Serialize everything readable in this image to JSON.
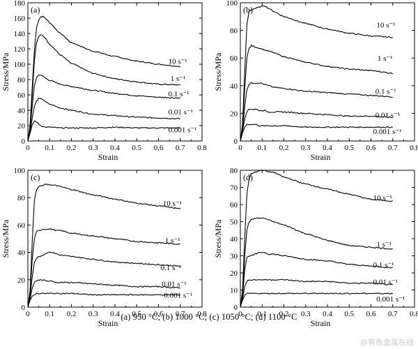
{
  "caption": "(a) 950 °C; (b) 1000 °C; (c) 1050 °C; (d) 1100 °C",
  "watermark": "@有色金属在线",
  "colors": {
    "line": "#000000",
    "background": "#ffffff",
    "watermark": "#c8c8c8"
  },
  "chart_data": [
    {
      "type": "line",
      "panel": "(a)",
      "xlabel": "Strain",
      "ylabel": "Stress/MPa",
      "xlim": [
        0,
        0.8
      ],
      "ylim": [
        0,
        180
      ],
      "xticks": [
        0,
        0.1,
        0.2,
        0.3,
        0.4,
        0.5,
        0.6,
        0.7,
        0.8
      ],
      "xtick_labels": [
        "0",
        "0.1",
        "0.2",
        "0.3",
        "0.4",
        "0.5",
        "0.6",
        "0.7",
        "0.8"
      ],
      "yticks": [
        0,
        20,
        40,
        60,
        80,
        100,
        120,
        140,
        160,
        180
      ],
      "ytick_labels": [
        "0",
        "20",
        "40",
        "60",
        "80",
        "100",
        "120",
        "140",
        "160",
        "180"
      ],
      "grid": false,
      "legend": "inline labels at right end of curves",
      "series": [
        {
          "name": "10 s⁻¹",
          "label_pos": [
            0.645,
            104
          ],
          "x": [
            0.01,
            0.02,
            0.03,
            0.04,
            0.05,
            0.06,
            0.07,
            0.08,
            0.1,
            0.15,
            0.2,
            0.3,
            0.4,
            0.5,
            0.6,
            0.7
          ],
          "y": [
            20,
            70,
            118,
            148,
            158,
            162,
            162,
            160,
            154,
            140,
            128,
            117,
            110,
            104,
            100,
            97
          ]
        },
        {
          "name": "1 s⁻¹",
          "label_pos": [
            0.655,
            82
          ],
          "x": [
            0.01,
            0.02,
            0.03,
            0.04,
            0.05,
            0.06,
            0.07,
            0.08,
            0.1,
            0.15,
            0.2,
            0.3,
            0.4,
            0.5,
            0.6,
            0.7
          ],
          "y": [
            18,
            60,
            105,
            128,
            136,
            138,
            137,
            134,
            126,
            112,
            101,
            88,
            81,
            77,
            74,
            73
          ]
        },
        {
          "name": "0.1 s⁻¹",
          "label_pos": [
            0.645,
            62
          ],
          "x": [
            0.01,
            0.02,
            0.03,
            0.04,
            0.05,
            0.06,
            0.07,
            0.08,
            0.1,
            0.15,
            0.2,
            0.3,
            0.4,
            0.5,
            0.6,
            0.7
          ],
          "y": [
            15,
            45,
            72,
            83,
            86,
            86,
            84,
            82,
            79,
            74,
            71,
            66,
            62,
            59,
            57,
            56
          ]
        },
        {
          "name": "0.01 s⁻¹",
          "label_pos": [
            0.645,
            38
          ],
          "x": [
            0.01,
            0.02,
            0.03,
            0.04,
            0.05,
            0.06,
            0.07,
            0.08,
            0.1,
            0.15,
            0.2,
            0.3,
            0.4,
            0.5,
            0.6,
            0.7
          ],
          "y": [
            12,
            30,
            45,
            52,
            55,
            55,
            54,
            51,
            48,
            43,
            40,
            35,
            33,
            31,
            30,
            29
          ]
        },
        {
          "name": "0.001 s⁻¹",
          "label_pos": [
            0.645,
            15
          ],
          "x": [
            0.01,
            0.02,
            0.03,
            0.04,
            0.05,
            0.06,
            0.07,
            0.08,
            0.1,
            0.15,
            0.2,
            0.3,
            0.4,
            0.5,
            0.6,
            0.7
          ],
          "y": [
            10,
            21,
            26,
            25,
            22,
            20,
            19,
            18,
            18,
            17,
            17,
            17,
            18,
            17,
            17,
            17
          ]
        }
      ]
    },
    {
      "type": "line",
      "panel": "(b)",
      "xlabel": "Strain",
      "ylabel": "Stress/MPa",
      "xlim": [
        0,
        0.8
      ],
      "ylim": [
        0,
        100
      ],
      "xticks": [
        0,
        0.1,
        0.2,
        0.3,
        0.4,
        0.5,
        0.6,
        0.7,
        0.8
      ],
      "xtick_labels": [
        "0",
        "0.1",
        "0.2",
        "0.3",
        "0.4",
        "0.5",
        "0.6",
        "0.7",
        "0.8"
      ],
      "yticks": [
        0,
        20,
        40,
        60,
        80,
        100
      ],
      "ytick_labels": [
        "0",
        "20",
        "40",
        "60",
        "80",
        "100"
      ],
      "grid": false,
      "legend": "inline labels at right end of curves",
      "series": [
        {
          "name": "10 s⁻¹",
          "label_pos": [
            0.625,
            84
          ],
          "x": [
            0.01,
            0.02,
            0.03,
            0.04,
            0.05,
            0.07,
            0.09,
            0.11,
            0.13,
            0.15,
            0.2,
            0.3,
            0.4,
            0.5,
            0.6,
            0.7
          ],
          "y": [
            12,
            50,
            84,
            94,
            95,
            96,
            97,
            98,
            96,
            94,
            90,
            85,
            81,
            78,
            76,
            75
          ]
        },
        {
          "name": "1 s⁻¹",
          "label_pos": [
            0.63,
            60
          ],
          "x": [
            0.01,
            0.02,
            0.03,
            0.04,
            0.05,
            0.07,
            0.09,
            0.11,
            0.13,
            0.15,
            0.2,
            0.3,
            0.4,
            0.5,
            0.6,
            0.7
          ],
          "y": [
            10,
            38,
            60,
            67,
            69,
            68,
            67,
            66,
            65,
            64,
            61,
            57,
            54,
            52,
            51,
            49
          ]
        },
        {
          "name": "0.1 s⁻¹",
          "label_pos": [
            0.62,
            36
          ],
          "x": [
            0.01,
            0.02,
            0.03,
            0.04,
            0.05,
            0.07,
            0.09,
            0.11,
            0.13,
            0.15,
            0.2,
            0.3,
            0.4,
            0.5,
            0.6,
            0.7
          ],
          "y": [
            8,
            25,
            37,
            41,
            42,
            42,
            42,
            41,
            40,
            39,
            38,
            36,
            35,
            34,
            33,
            32
          ]
        },
        {
          "name": "0.01 s⁻¹",
          "label_pos": [
            0.62,
            19
          ],
          "x": [
            0.01,
            0.02,
            0.03,
            0.04,
            0.05,
            0.07,
            0.09,
            0.11,
            0.13,
            0.15,
            0.2,
            0.3,
            0.4,
            0.5,
            0.6,
            0.7
          ],
          "y": [
            7,
            16,
            21,
            23,
            23,
            23,
            22,
            22,
            21,
            21,
            21,
            20,
            19,
            18,
            18,
            17
          ]
        },
        {
          "name": "0.001 s⁻¹",
          "label_pos": [
            0.61,
            7
          ],
          "x": [
            0.01,
            0.02,
            0.03,
            0.04,
            0.05,
            0.07,
            0.09,
            0.11,
            0.13,
            0.15,
            0.2,
            0.3,
            0.4,
            0.5,
            0.6,
            0.7
          ],
          "y": [
            6,
            10,
            12,
            12,
            12,
            12,
            11,
            11,
            11,
            11,
            11,
            10,
            10,
            10,
            10,
            10
          ]
        }
      ]
    },
    {
      "type": "line",
      "panel": "(c)",
      "xlabel": "Strain",
      "ylabel": "Stress/MPa",
      "xlim": [
        0,
        0.8
      ],
      "ylim": [
        0,
        100
      ],
      "xticks": [
        0,
        0.1,
        0.2,
        0.3,
        0.4,
        0.5,
        0.6,
        0.7,
        0.8
      ],
      "xtick_labels": [
        "0",
        "0.1",
        "0.2",
        "0.3",
        "0.4",
        "0.5",
        "0.6",
        "0.7",
        "0.8"
      ],
      "yticks": [
        0,
        20,
        40,
        60,
        80,
        100
      ],
      "ytick_labels": [
        "0",
        "20",
        "40",
        "60",
        "80",
        "100"
      ],
      "grid": false,
      "legend": "inline labels at right end of curves",
      "series": [
        {
          "name": "10 s⁻¹",
          "label_pos": [
            0.62,
            76
          ],
          "x": [
            0.01,
            0.02,
            0.03,
            0.04,
            0.05,
            0.07,
            0.09,
            0.11,
            0.13,
            0.15,
            0.2,
            0.3,
            0.4,
            0.5,
            0.6,
            0.7
          ],
          "y": [
            12,
            48,
            78,
            86,
            88,
            89,
            90,
            89,
            89,
            88,
            86,
            82,
            79,
            76,
            74,
            72
          ]
        },
        {
          "name": "1 s⁻¹",
          "label_pos": [
            0.63,
            49
          ],
          "x": [
            0.01,
            0.02,
            0.03,
            0.04,
            0.05,
            0.07,
            0.09,
            0.11,
            0.13,
            0.15,
            0.2,
            0.3,
            0.4,
            0.5,
            0.6,
            0.7
          ],
          "y": [
            10,
            35,
            50,
            55,
            56,
            57,
            57,
            57,
            56,
            56,
            54,
            52,
            50,
            48,
            47,
            46
          ]
        },
        {
          "name": "0.1 s⁻¹",
          "label_pos": [
            0.61,
            29
          ],
          "x": [
            0.01,
            0.02,
            0.03,
            0.04,
            0.05,
            0.07,
            0.09,
            0.11,
            0.13,
            0.15,
            0.2,
            0.3,
            0.4,
            0.5,
            0.6,
            0.7
          ],
          "y": [
            8,
            22,
            33,
            36,
            37,
            38,
            40,
            40,
            39,
            38,
            37,
            35,
            33,
            32,
            31,
            30
          ]
        },
        {
          "name": "0.01 s⁻¹",
          "label_pos": [
            0.615,
            17
          ],
          "x": [
            0.01,
            0.02,
            0.03,
            0.04,
            0.05,
            0.07,
            0.09,
            0.11,
            0.13,
            0.15,
            0.2,
            0.3,
            0.4,
            0.5,
            0.6,
            0.7
          ],
          "y": [
            6,
            14,
            18,
            19,
            20,
            20,
            19,
            19,
            18,
            18,
            18,
            17,
            16,
            15,
            15,
            14
          ]
        },
        {
          "name": "0.001 s⁻¹",
          "label_pos": [
            0.625,
            9
          ],
          "x": [
            0.01,
            0.02,
            0.03,
            0.04,
            0.05,
            0.07,
            0.09,
            0.11,
            0.13,
            0.15,
            0.2,
            0.3,
            0.4,
            0.5,
            0.6,
            0.7
          ],
          "y": [
            5,
            8,
            9,
            10,
            10,
            10,
            10,
            10,
            10,
            10,
            10,
            9,
            9,
            9,
            9,
            9
          ]
        }
      ]
    },
    {
      "type": "line",
      "panel": "(d)",
      "xlabel": "Strain",
      "ylabel": "Stress/MPa",
      "xlim": [
        0,
        0.8
      ],
      "ylim": [
        0,
        80
      ],
      "xticks": [
        0,
        0.1,
        0.2,
        0.3,
        0.4,
        0.5,
        0.6,
        0.7,
        0.8
      ],
      "xtick_labels": [
        "0",
        "0.1",
        "0.2",
        "0.3",
        "0.4",
        "0.5",
        "0.6",
        "0.7",
        "0.8"
      ],
      "yticks": [
        0,
        10,
        20,
        30,
        40,
        50,
        60,
        70,
        80
      ],
      "ytick_labels": [
        "0",
        "10",
        "20",
        "30",
        "40",
        "50",
        "60",
        "70",
        "80"
      ],
      "grid": false,
      "legend": "inline labels at right end of curves",
      "series": [
        {
          "name": "10 s⁻¹",
          "label_pos": [
            0.61,
            64
          ],
          "x": [
            0.01,
            0.02,
            0.03,
            0.04,
            0.05,
            0.07,
            0.09,
            0.11,
            0.13,
            0.15,
            0.2,
            0.3,
            0.4,
            0.5,
            0.6,
            0.7
          ],
          "y": [
            10,
            40,
            66,
            75,
            78,
            79,
            80,
            80,
            79,
            79,
            76,
            72,
            69,
            66,
            63,
            62
          ]
        },
        {
          "name": "1 s⁻¹",
          "label_pos": [
            0.625,
            37
          ],
          "x": [
            0.01,
            0.02,
            0.03,
            0.04,
            0.05,
            0.07,
            0.09,
            0.11,
            0.13,
            0.15,
            0.2,
            0.3,
            0.4,
            0.5,
            0.6,
            0.7
          ],
          "y": [
            8,
            30,
            45,
            50,
            51,
            52,
            52,
            52,
            51,
            50,
            48,
            43,
            39,
            36,
            35,
            34
          ]
        },
        {
          "name": "0.1 s⁻¹",
          "label_pos": [
            0.61,
            25
          ],
          "x": [
            0.01,
            0.02,
            0.03,
            0.04,
            0.05,
            0.07,
            0.09,
            0.11,
            0.13,
            0.15,
            0.2,
            0.3,
            0.4,
            0.5,
            0.6,
            0.7
          ],
          "y": [
            6,
            22,
            29,
            30,
            30,
            31,
            32,
            32,
            31,
            31,
            30,
            28,
            27,
            25,
            24,
            23
          ]
        },
        {
          "name": "0.01 s⁻¹",
          "label_pos": [
            0.61,
            15
          ],
          "x": [
            0.01,
            0.02,
            0.03,
            0.04,
            0.05,
            0.07,
            0.09,
            0.11,
            0.13,
            0.15,
            0.2,
            0.3,
            0.4,
            0.5,
            0.6,
            0.7
          ],
          "y": [
            5,
            12,
            15,
            16,
            16,
            16,
            16,
            16,
            16,
            16,
            16,
            15,
            15,
            14,
            14,
            13
          ]
        },
        {
          "name": "0.001 s⁻¹",
          "label_pos": [
            0.625,
            5
          ],
          "x": [
            0.01,
            0.02,
            0.03,
            0.04,
            0.05,
            0.07,
            0.09,
            0.11,
            0.13,
            0.15,
            0.2,
            0.3,
            0.4,
            0.5,
            0.6,
            0.7
          ],
          "y": [
            4,
            7,
            8,
            8,
            8,
            8,
            8,
            8,
            8,
            8,
            8,
            8,
            8,
            8,
            8,
            8
          ]
        }
      ]
    }
  ]
}
